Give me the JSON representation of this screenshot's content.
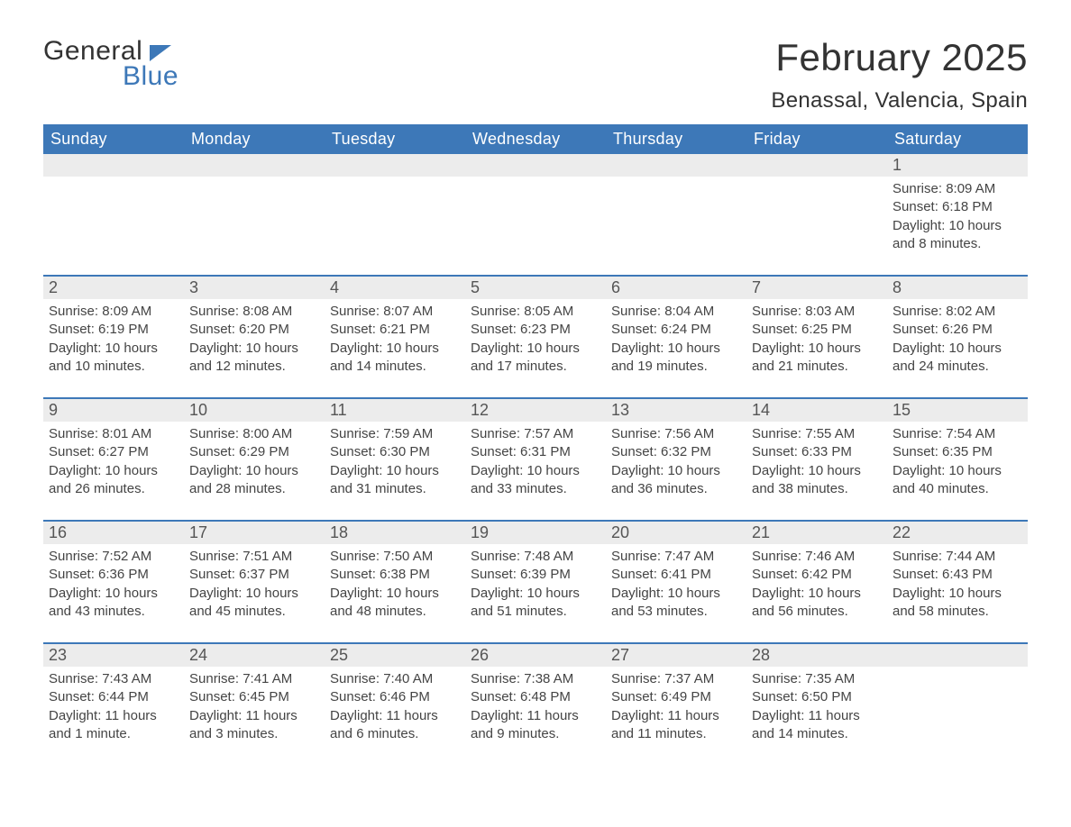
{
  "logo": {
    "word1": "General",
    "word2": "Blue"
  },
  "title": {
    "month_year": "February 2025",
    "location": "Benassal, Valencia, Spain"
  },
  "colors": {
    "header_bg": "#3d78b8",
    "header_text": "#ffffff",
    "daynum_bg": "#ececec",
    "week_border": "#3d78b8",
    "text": "#333333",
    "logo_blue": "#3d78b8",
    "page_bg": "#ffffff"
  },
  "typography": {
    "month_year_fontsize": 42,
    "location_fontsize": 24,
    "dow_fontsize": 18,
    "daynum_fontsize": 18,
    "detail_fontsize": 15,
    "logo_fontsize": 30
  },
  "days_of_week": [
    "Sunday",
    "Monday",
    "Tuesday",
    "Wednesday",
    "Thursday",
    "Friday",
    "Saturday"
  ],
  "weeks": [
    [
      null,
      null,
      null,
      null,
      null,
      null,
      {
        "n": "1",
        "sunrise": "Sunrise: 8:09 AM",
        "sunset": "Sunset: 6:18 PM",
        "day1": "Daylight: 10 hours",
        "day2": "and 8 minutes."
      }
    ],
    [
      {
        "n": "2",
        "sunrise": "Sunrise: 8:09 AM",
        "sunset": "Sunset: 6:19 PM",
        "day1": "Daylight: 10 hours",
        "day2": "and 10 minutes."
      },
      {
        "n": "3",
        "sunrise": "Sunrise: 8:08 AM",
        "sunset": "Sunset: 6:20 PM",
        "day1": "Daylight: 10 hours",
        "day2": "and 12 minutes."
      },
      {
        "n": "4",
        "sunrise": "Sunrise: 8:07 AM",
        "sunset": "Sunset: 6:21 PM",
        "day1": "Daylight: 10 hours",
        "day2": "and 14 minutes."
      },
      {
        "n": "5",
        "sunrise": "Sunrise: 8:05 AM",
        "sunset": "Sunset: 6:23 PM",
        "day1": "Daylight: 10 hours",
        "day2": "and 17 minutes."
      },
      {
        "n": "6",
        "sunrise": "Sunrise: 8:04 AM",
        "sunset": "Sunset: 6:24 PM",
        "day1": "Daylight: 10 hours",
        "day2": "and 19 minutes."
      },
      {
        "n": "7",
        "sunrise": "Sunrise: 8:03 AM",
        "sunset": "Sunset: 6:25 PM",
        "day1": "Daylight: 10 hours",
        "day2": "and 21 minutes."
      },
      {
        "n": "8",
        "sunrise": "Sunrise: 8:02 AM",
        "sunset": "Sunset: 6:26 PM",
        "day1": "Daylight: 10 hours",
        "day2": "and 24 minutes."
      }
    ],
    [
      {
        "n": "9",
        "sunrise": "Sunrise: 8:01 AM",
        "sunset": "Sunset: 6:27 PM",
        "day1": "Daylight: 10 hours",
        "day2": "and 26 minutes."
      },
      {
        "n": "10",
        "sunrise": "Sunrise: 8:00 AM",
        "sunset": "Sunset: 6:29 PM",
        "day1": "Daylight: 10 hours",
        "day2": "and 28 minutes."
      },
      {
        "n": "11",
        "sunrise": "Sunrise: 7:59 AM",
        "sunset": "Sunset: 6:30 PM",
        "day1": "Daylight: 10 hours",
        "day2": "and 31 minutes."
      },
      {
        "n": "12",
        "sunrise": "Sunrise: 7:57 AM",
        "sunset": "Sunset: 6:31 PM",
        "day1": "Daylight: 10 hours",
        "day2": "and 33 minutes."
      },
      {
        "n": "13",
        "sunrise": "Sunrise: 7:56 AM",
        "sunset": "Sunset: 6:32 PM",
        "day1": "Daylight: 10 hours",
        "day2": "and 36 minutes."
      },
      {
        "n": "14",
        "sunrise": "Sunrise: 7:55 AM",
        "sunset": "Sunset: 6:33 PM",
        "day1": "Daylight: 10 hours",
        "day2": "and 38 minutes."
      },
      {
        "n": "15",
        "sunrise": "Sunrise: 7:54 AM",
        "sunset": "Sunset: 6:35 PM",
        "day1": "Daylight: 10 hours",
        "day2": "and 40 minutes."
      }
    ],
    [
      {
        "n": "16",
        "sunrise": "Sunrise: 7:52 AM",
        "sunset": "Sunset: 6:36 PM",
        "day1": "Daylight: 10 hours",
        "day2": "and 43 minutes."
      },
      {
        "n": "17",
        "sunrise": "Sunrise: 7:51 AM",
        "sunset": "Sunset: 6:37 PM",
        "day1": "Daylight: 10 hours",
        "day2": "and 45 minutes."
      },
      {
        "n": "18",
        "sunrise": "Sunrise: 7:50 AM",
        "sunset": "Sunset: 6:38 PM",
        "day1": "Daylight: 10 hours",
        "day2": "and 48 minutes."
      },
      {
        "n": "19",
        "sunrise": "Sunrise: 7:48 AM",
        "sunset": "Sunset: 6:39 PM",
        "day1": "Daylight: 10 hours",
        "day2": "and 51 minutes."
      },
      {
        "n": "20",
        "sunrise": "Sunrise: 7:47 AM",
        "sunset": "Sunset: 6:41 PM",
        "day1": "Daylight: 10 hours",
        "day2": "and 53 minutes."
      },
      {
        "n": "21",
        "sunrise": "Sunrise: 7:46 AM",
        "sunset": "Sunset: 6:42 PM",
        "day1": "Daylight: 10 hours",
        "day2": "and 56 minutes."
      },
      {
        "n": "22",
        "sunrise": "Sunrise: 7:44 AM",
        "sunset": "Sunset: 6:43 PM",
        "day1": "Daylight: 10 hours",
        "day2": "and 58 minutes."
      }
    ],
    [
      {
        "n": "23",
        "sunrise": "Sunrise: 7:43 AM",
        "sunset": "Sunset: 6:44 PM",
        "day1": "Daylight: 11 hours",
        "day2": "and 1 minute."
      },
      {
        "n": "24",
        "sunrise": "Sunrise: 7:41 AM",
        "sunset": "Sunset: 6:45 PM",
        "day1": "Daylight: 11 hours",
        "day2": "and 3 minutes."
      },
      {
        "n": "25",
        "sunrise": "Sunrise: 7:40 AM",
        "sunset": "Sunset: 6:46 PM",
        "day1": "Daylight: 11 hours",
        "day2": "and 6 minutes."
      },
      {
        "n": "26",
        "sunrise": "Sunrise: 7:38 AM",
        "sunset": "Sunset: 6:48 PM",
        "day1": "Daylight: 11 hours",
        "day2": "and 9 minutes."
      },
      {
        "n": "27",
        "sunrise": "Sunrise: 7:37 AM",
        "sunset": "Sunset: 6:49 PM",
        "day1": "Daylight: 11 hours",
        "day2": "and 11 minutes."
      },
      {
        "n": "28",
        "sunrise": "Sunrise: 7:35 AM",
        "sunset": "Sunset: 6:50 PM",
        "day1": "Daylight: 11 hours",
        "day2": "and 14 minutes."
      },
      null
    ]
  ]
}
